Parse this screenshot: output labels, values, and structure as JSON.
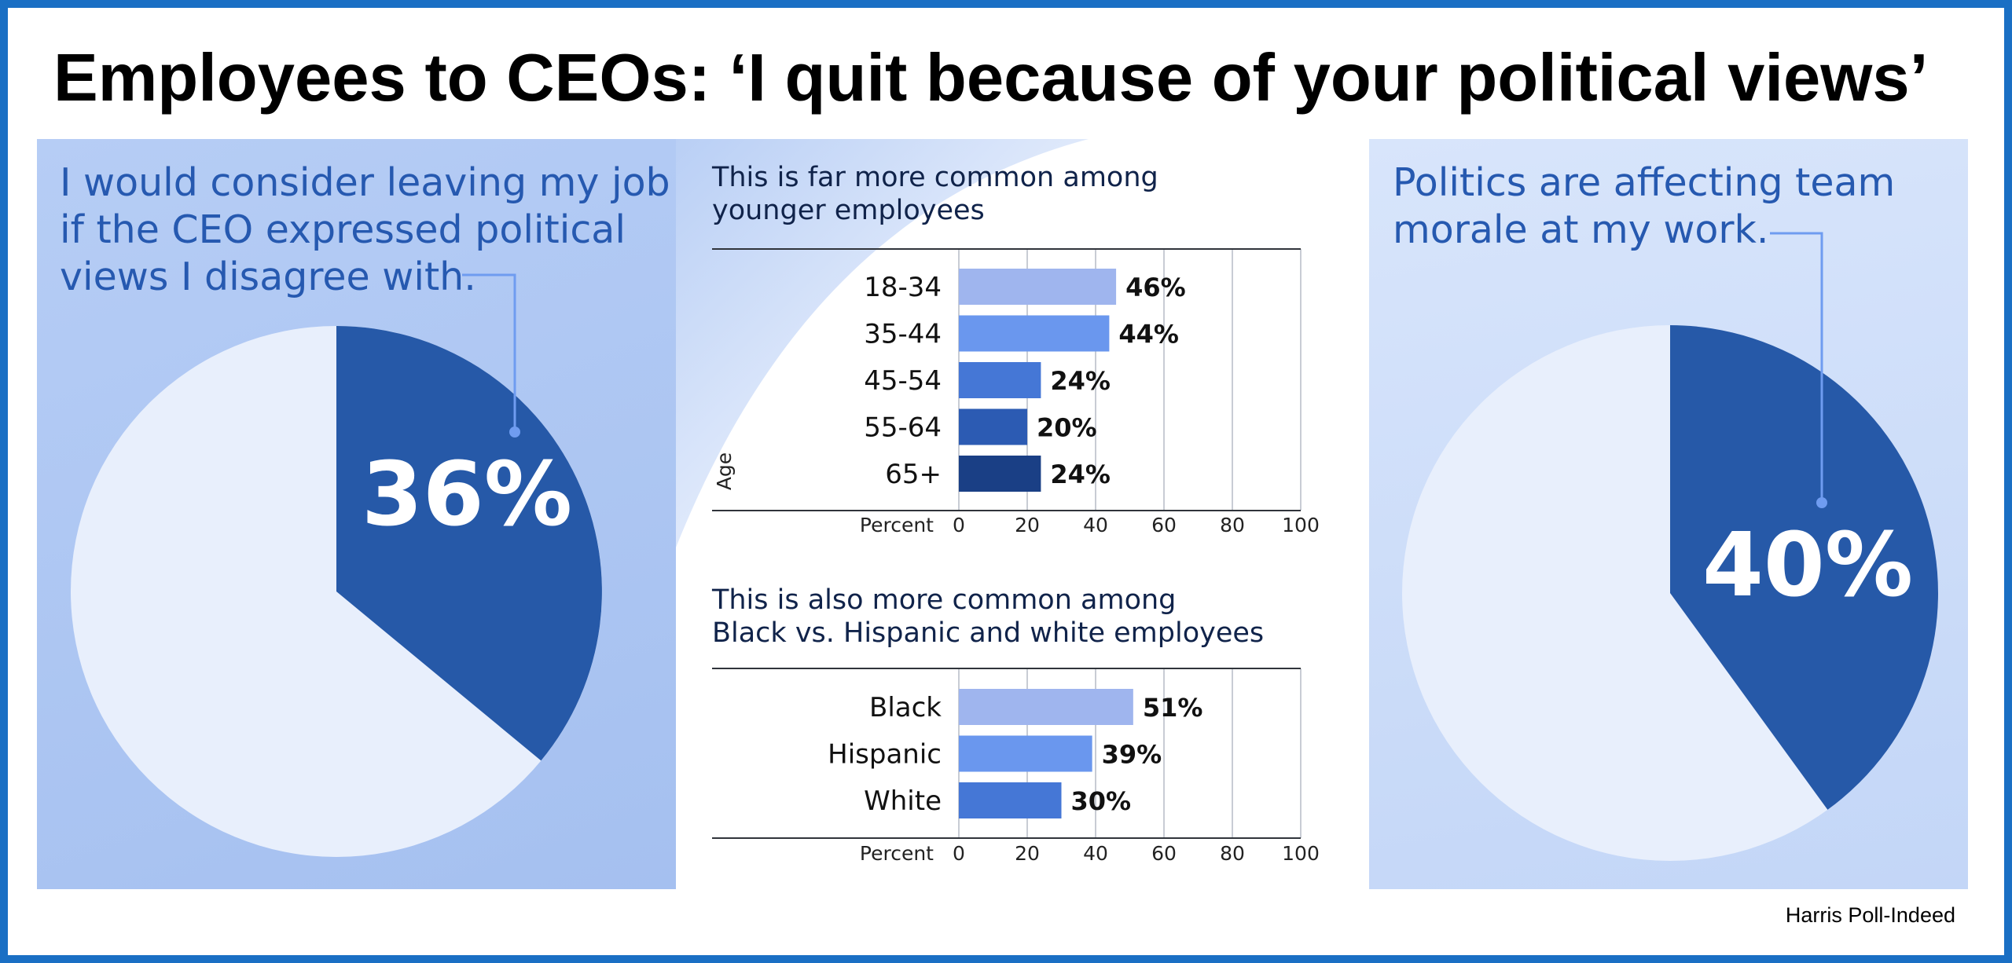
{
  "title": "Employees to CEOs: ‘I quit because of your political views’",
  "source": "Harris Poll-Indeed",
  "colors": {
    "frame": "#1a6fc4",
    "pie_highlight": "#2659a8",
    "pie_rest": "#e8effc",
    "bar_shades": [
      "#9fb5ee",
      "#6a97ee",
      "#4577d6",
      "#2c5bb3",
      "#1a3f85"
    ],
    "caption": "#2659b0"
  },
  "left_panel": {
    "caption_lines": [
      "I would consider leaving my job",
      "if the CEO expressed political",
      "views I disagree with."
    ]
  },
  "right_panel": {
    "caption_lines": [
      "Politics are affecting team",
      "morale at my work."
    ]
  },
  "age_chart": {
    "title_lines": [
      "This is far more common among",
      "younger employees"
    ]
  },
  "race_chart": {
    "title_lines": [
      "This is also more common among",
      "Black vs. Hispanic and white employees"
    ]
  },
  "chart_data": [
    {
      "type": "pie",
      "title": "I would consider leaving my job if the CEO expressed political views I disagree with.",
      "highlight_value": 36,
      "label": "36%"
    },
    {
      "type": "bar",
      "orientation": "horizontal",
      "title": "This is far more common among younger employees",
      "categories": [
        "18-34",
        "35-44",
        "45-54",
        "55-64",
        "65+"
      ],
      "values": [
        46,
        44,
        24,
        20,
        24
      ],
      "labels": [
        "46%",
        "44%",
        "24%",
        "20%",
        "24%"
      ],
      "xlabel": "Percent",
      "ylabel": "Age",
      "xlim": [
        0,
        100
      ],
      "ticks": [
        0,
        20,
        40,
        60,
        80,
        100
      ],
      "grid": true
    },
    {
      "type": "bar",
      "orientation": "horizontal",
      "title": "This is also more common among Black vs. Hispanic and white employees",
      "categories": [
        "Black",
        "Hispanic",
        "White"
      ],
      "values": [
        51,
        39,
        30
      ],
      "labels": [
        "51%",
        "39%",
        "30%"
      ],
      "xlabel": "Percent",
      "ylabel": "",
      "xlim": [
        0,
        100
      ],
      "ticks": [
        0,
        20,
        40,
        60,
        80,
        100
      ],
      "grid": true
    },
    {
      "type": "pie",
      "title": "Politics are affecting team morale at my work.",
      "highlight_value": 40,
      "label": "40%"
    }
  ]
}
